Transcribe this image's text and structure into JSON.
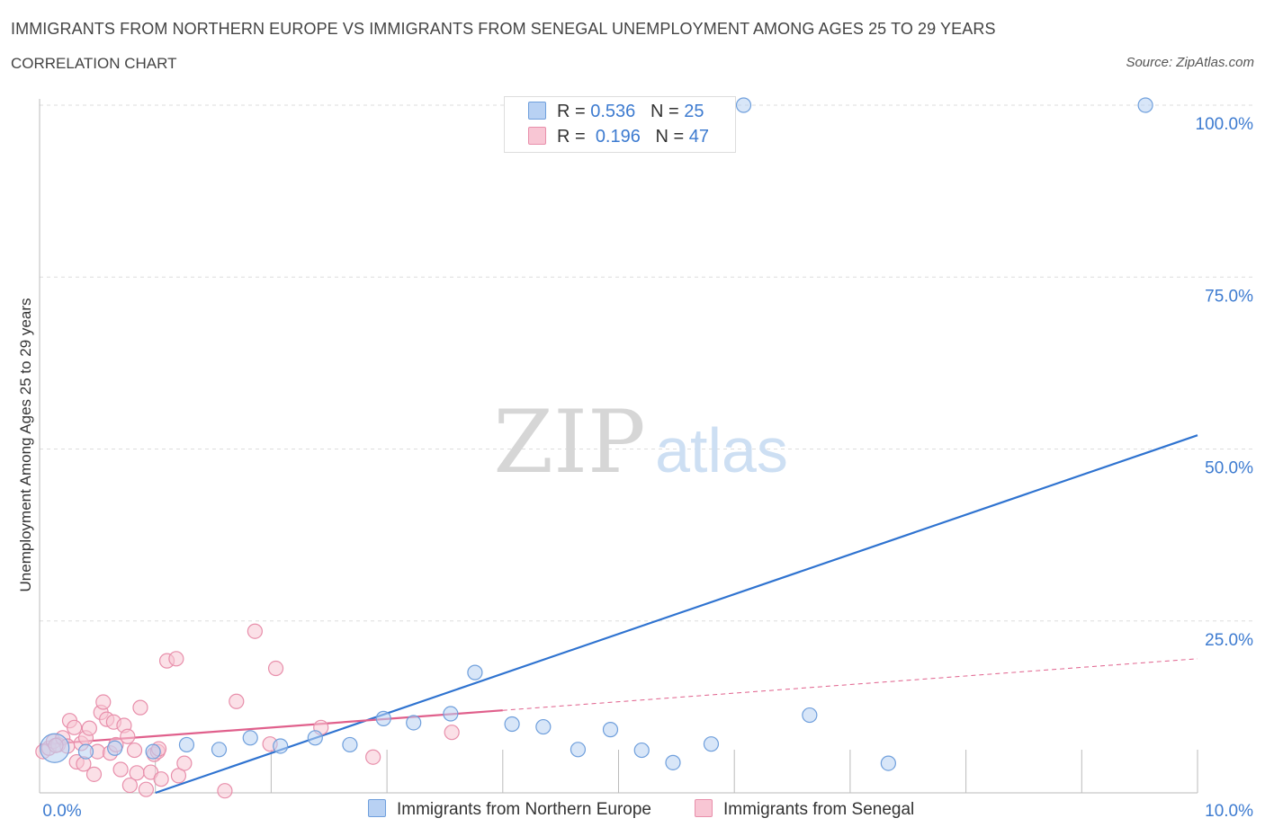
{
  "header": {
    "title": "IMMIGRANTS FROM NORTHERN EUROPE VS IMMIGRANTS FROM SENEGAL UNEMPLOYMENT AMONG AGES 25 TO 29 YEARS",
    "subtitle": "CORRELATION CHART",
    "source": "Source: ZipAtlas.com"
  },
  "watermark": {
    "zip": "ZIP",
    "atlas": "atlas"
  },
  "stats_legend": {
    "rows": [
      {
        "r_label": "R =",
        "r_value": "0.536",
        "n_label": "N =",
        "n_value": "25"
      },
      {
        "r_label": "R =",
        "r_value": "0.196",
        "n_label": "N =",
        "n_value": "47"
      }
    ]
  },
  "colors": {
    "blue_fill": "#b8d1f3",
    "blue_stroke": "#6f9fdc",
    "blue_line": "#2f73d0",
    "pink_fill": "#f8c6d4",
    "pink_stroke": "#e88fab",
    "pink_line": "#e0608c",
    "axis_text": "#3d7bd0",
    "grid": "#dddddd"
  },
  "chart_data": {
    "type": "scatter",
    "title": "IMMIGRANTS FROM NORTHERN EUROPE VS IMMIGRANTS FROM SENEGAL UNEMPLOYMENT AMONG AGES 25 TO 29 YEARS",
    "ylabel": "Unemployment Among Ages 25 to 29 years",
    "xlabel": "",
    "xlim": [
      0,
      10
    ],
    "ylim": [
      0,
      100
    ],
    "x_tick_labels": [
      "0.0%",
      "10.0%"
    ],
    "y_tick_labels": [
      "25.0%",
      "50.0%",
      "75.0%",
      "100.0%"
    ],
    "y_tick_values": [
      25,
      50,
      75,
      100
    ],
    "series": [
      {
        "name": "Immigrants from Northern Europe",
        "color": "#6f9fdc",
        "trend": {
          "x0": 1.0,
          "y0": 0.0,
          "x1": 10.0,
          "y1": 52.0,
          "dash_from": null
        },
        "points": [
          {
            "x": 0.13,
            "y": 6.5,
            "big": true
          },
          {
            "x": 0.4,
            "y": 6.0
          },
          {
            "x": 0.65,
            "y": 6.5
          },
          {
            "x": 0.98,
            "y": 6.0
          },
          {
            "x": 1.27,
            "y": 7.0
          },
          {
            "x": 1.55,
            "y": 6.3
          },
          {
            "x": 1.82,
            "y": 8.0
          },
          {
            "x": 2.08,
            "y": 6.8
          },
          {
            "x": 2.38,
            "y": 8.0
          },
          {
            "x": 2.68,
            "y": 7.0
          },
          {
            "x": 2.97,
            "y": 10.8
          },
          {
            "x": 3.23,
            "y": 10.2
          },
          {
            "x": 3.55,
            "y": 11.5
          },
          {
            "x": 3.76,
            "y": 17.5
          },
          {
            "x": 4.08,
            "y": 10.0
          },
          {
            "x": 4.35,
            "y": 9.6
          },
          {
            "x": 4.65,
            "y": 6.3
          },
          {
            "x": 4.93,
            "y": 9.2
          },
          {
            "x": 5.2,
            "y": 6.2
          },
          {
            "x": 5.47,
            "y": 4.4
          },
          {
            "x": 5.8,
            "y": 7.1
          },
          {
            "x": 6.08,
            "y": 100.0
          },
          {
            "x": 6.65,
            "y": 11.3
          },
          {
            "x": 7.33,
            "y": 4.3
          },
          {
            "x": 9.55,
            "y": 100.0
          }
        ]
      },
      {
        "name": "Immigrants from Senegal",
        "color": "#e88fab",
        "trend": {
          "x0": 0.0,
          "y0": 7.0,
          "x1": 10.0,
          "y1": 19.5,
          "dash_from": 4.0
        },
        "points": [
          {
            "x": 0.03,
            "y": 6.0
          },
          {
            "x": 0.08,
            "y": 6.5
          },
          {
            "x": 0.12,
            "y": 7.5
          },
          {
            "x": 0.16,
            "y": 7.0
          },
          {
            "x": 0.2,
            "y": 8.0
          },
          {
            "x": 0.24,
            "y": 6.8
          },
          {
            "x": 0.26,
            "y": 10.5
          },
          {
            "x": 0.3,
            "y": 9.5
          },
          {
            "x": 0.32,
            "y": 4.5
          },
          {
            "x": 0.36,
            "y": 7.2
          },
          {
            "x": 0.38,
            "y": 4.2
          },
          {
            "x": 0.4,
            "y": 8.0
          },
          {
            "x": 0.43,
            "y": 9.4
          },
          {
            "x": 0.47,
            "y": 2.7
          },
          {
            "x": 0.5,
            "y": 6.0
          },
          {
            "x": 0.53,
            "y": 11.7
          },
          {
            "x": 0.55,
            "y": 13.2
          },
          {
            "x": 0.58,
            "y": 10.7
          },
          {
            "x": 0.61,
            "y": 5.8
          },
          {
            "x": 0.64,
            "y": 10.3
          },
          {
            "x": 0.66,
            "y": 7.0
          },
          {
            "x": 0.7,
            "y": 3.4
          },
          {
            "x": 0.73,
            "y": 9.8
          },
          {
            "x": 0.76,
            "y": 8.2
          },
          {
            "x": 0.78,
            "y": 1.1
          },
          {
            "x": 0.82,
            "y": 6.2
          },
          {
            "x": 0.84,
            "y": 2.9
          },
          {
            "x": 0.87,
            "y": 12.4
          },
          {
            "x": 0.92,
            "y": 0.5
          },
          {
            "x": 0.96,
            "y": 3.0
          },
          {
            "x": 0.99,
            "y": 5.6
          },
          {
            "x": 1.02,
            "y": 6.0
          },
          {
            "x": 1.05,
            "y": 2.0
          },
          {
            "x": 1.1,
            "y": 19.2
          },
          {
            "x": 1.18,
            "y": 19.5
          },
          {
            "x": 1.2,
            "y": 2.5
          },
          {
            "x": 1.25,
            "y": 4.3
          },
          {
            "x": 1.6,
            "y": 0.3
          },
          {
            "x": 1.7,
            "y": 13.3
          },
          {
            "x": 1.86,
            "y": 23.5
          },
          {
            "x": 1.99,
            "y": 7.1
          },
          {
            "x": 2.04,
            "y": 18.1
          },
          {
            "x": 2.43,
            "y": 9.5
          },
          {
            "x": 2.88,
            "y": 5.2
          },
          {
            "x": 3.56,
            "y": 8.8
          },
          {
            "x": 1.03,
            "y": 6.4
          },
          {
            "x": 0.14,
            "y": 6.9
          }
        ]
      }
    ]
  },
  "bottom_legend": {
    "items": [
      {
        "label": "Immigrants from Northern Europe"
      },
      {
        "label": "Immigrants from Senegal"
      }
    ]
  }
}
